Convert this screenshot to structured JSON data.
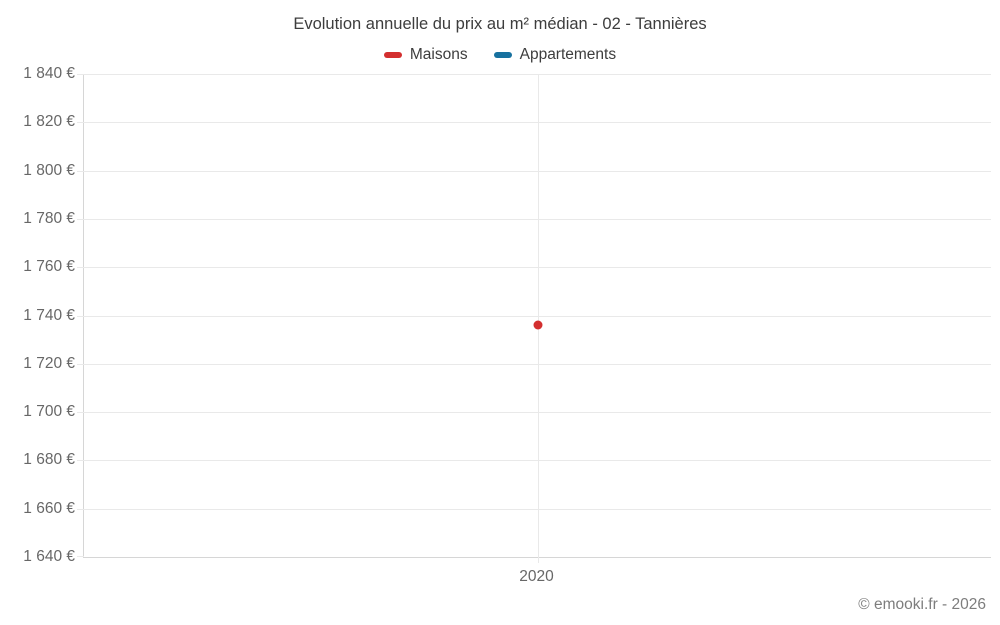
{
  "chart_data": {
    "type": "scatter",
    "title": "Evolution annuelle du prix au m² médian - 02 - Tannières",
    "legend_position": "top",
    "grid": true,
    "x_categories": [
      "2020"
    ],
    "y_axis": {
      "min": 1640,
      "max": 1840,
      "step": 20,
      "ticks": [
        {
          "value": 1640,
          "label": "1 640 €"
        },
        {
          "value": 1660,
          "label": "1 660 €"
        },
        {
          "value": 1680,
          "label": "1 680 €"
        },
        {
          "value": 1700,
          "label": "1 700 €"
        },
        {
          "value": 1720,
          "label": "1 720 €"
        },
        {
          "value": 1740,
          "label": "1 740 €"
        },
        {
          "value": 1760,
          "label": "1 760 €"
        },
        {
          "value": 1780,
          "label": "1 780 €"
        },
        {
          "value": 1800,
          "label": "1 800 €"
        },
        {
          "value": 1820,
          "label": "1 820 €"
        },
        {
          "value": 1840,
          "label": "1 840 €"
        }
      ]
    },
    "series": [
      {
        "name": "Maisons",
        "color": "#d32f2f",
        "points": [
          {
            "x": "2020",
            "value": 1736
          }
        ]
      },
      {
        "name": "Appartements",
        "color": "#17719f",
        "points": []
      }
    ],
    "colors": {
      "grid": "#e9e9e9",
      "axis": "#d6d6d6",
      "title_text": "#3d3d3d",
      "tick_text": "#676767"
    }
  },
  "footer": {
    "text": "© emooki.fr - 2026"
  }
}
